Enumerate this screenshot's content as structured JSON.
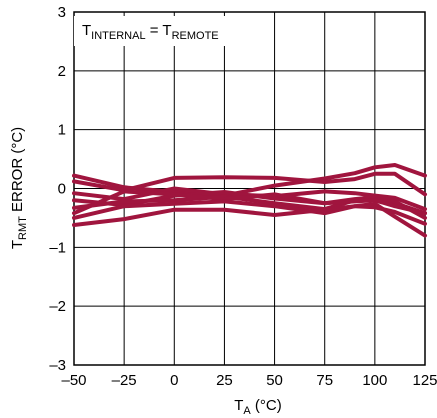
{
  "chart_data": {
    "type": "line",
    "title": "",
    "xlabel": {
      "main": "T",
      "sub": "A",
      "rest": " (°C)"
    },
    "ylabel": {
      "main": "T",
      "sub": "RMT",
      "rest": " ERROR (°C)"
    },
    "annotation": {
      "lhs_main": "T",
      "lhs_sub": "INTERNAL",
      "eq": " = ",
      "rhs_main": "T",
      "rhs_sub": "REMOTE"
    },
    "xlim": [
      -50,
      125
    ],
    "ylim": [
      -3,
      3
    ],
    "x_ticks": [
      -50,
      -25,
      0,
      25,
      50,
      75,
      100,
      125
    ],
    "x_tick_labels": [
      "–50",
      "–25",
      "0",
      "25",
      "50",
      "75",
      "100",
      "125"
    ],
    "y_ticks": [
      -3,
      -2,
      -1,
      0,
      1,
      2,
      3
    ],
    "y_tick_labels": [
      "–3",
      "–2",
      "–1",
      "0",
      "1",
      "2",
      "3"
    ],
    "grid": true,
    "line_color": "#a0153e",
    "x": [
      -50,
      -25,
      0,
      25,
      50,
      75,
      90,
      100,
      110,
      125
    ],
    "series": [
      {
        "values": [
          0.22,
          0.02,
          -0.06,
          -0.12,
          0.05,
          0.17,
          0.26,
          0.36,
          0.4,
          0.22
        ]
      },
      {
        "values": [
          0.12,
          -0.03,
          0.18,
          0.19,
          0.18,
          0.11,
          0.16,
          0.25,
          0.25,
          -0.1
        ]
      },
      {
        "values": [
          -0.08,
          -0.18,
          0.0,
          -0.1,
          -0.13,
          -0.05,
          -0.08,
          -0.12,
          -0.25,
          -0.42
        ]
      },
      {
        "values": [
          -0.2,
          -0.28,
          -0.12,
          -0.06,
          -0.17,
          -0.25,
          -0.18,
          -0.15,
          -0.22,
          -0.5
        ]
      },
      {
        "values": [
          -0.33,
          -0.22,
          -0.2,
          -0.14,
          -0.25,
          -0.35,
          -0.2,
          -0.12,
          -0.16,
          -0.35
        ]
      },
      {
        "values": [
          -0.42,
          -0.05,
          -0.1,
          -0.18,
          -0.1,
          -0.25,
          -0.22,
          -0.2,
          -0.3,
          -0.42
        ]
      },
      {
        "values": [
          -0.5,
          -0.3,
          -0.26,
          -0.22,
          -0.3,
          -0.42,
          -0.3,
          -0.26,
          -0.48,
          -0.8
        ]
      },
      {
        "values": [
          -0.62,
          -0.52,
          -0.36,
          -0.36,
          -0.45,
          -0.36,
          -0.3,
          -0.32,
          -0.4,
          -0.6
        ]
      }
    ]
  }
}
